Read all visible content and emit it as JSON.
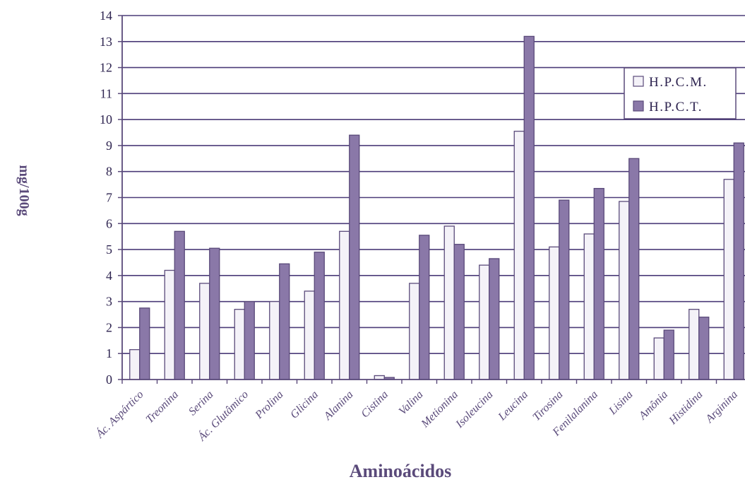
{
  "chart_data": {
    "type": "bar",
    "title": "",
    "xlabel": "Aminoácidos",
    "ylabel": "mg/100g",
    "ylim": [
      0,
      14
    ],
    "yticks": [
      0,
      1,
      2,
      3,
      4,
      5,
      6,
      7,
      8,
      9,
      10,
      11,
      12,
      13,
      14
    ],
    "grid": true,
    "legend_position": "top-right",
    "categories": [
      "Ác. Aspártico",
      "Treonina",
      "Serina",
      "Ác. Glutâmico",
      "Prolina",
      "Glicina",
      "Alanina",
      "Cistina",
      "Valina",
      "Metionina",
      "Isoleucina",
      "Leucina",
      "Tirosina",
      "Fenilalanina",
      "Lisina",
      "Amônia",
      "Histidina",
      "Arginina"
    ],
    "series": [
      {
        "name": "H.P.C.M.",
        "color": "#f4f2f8",
        "values": [
          1.15,
          4.2,
          3.7,
          2.7,
          3.0,
          3.4,
          5.7,
          0.15,
          3.7,
          5.9,
          4.4,
          9.55,
          5.1,
          5.6,
          6.85,
          1.6,
          2.7,
          7.7
        ]
      },
      {
        "name": "H.P.C.T.",
        "color": "#8a78a8",
        "values": [
          2.75,
          5.7,
          5.05,
          3.0,
          4.45,
          4.9,
          9.4,
          0.08,
          5.55,
          5.2,
          4.65,
          13.2,
          6.9,
          7.35,
          8.5,
          1.9,
          2.4,
          9.1
        ]
      }
    ],
    "colors": {
      "axis": "#5a4a7a",
      "grid": "#4b3b78",
      "text": "#5a4a7a"
    }
  }
}
